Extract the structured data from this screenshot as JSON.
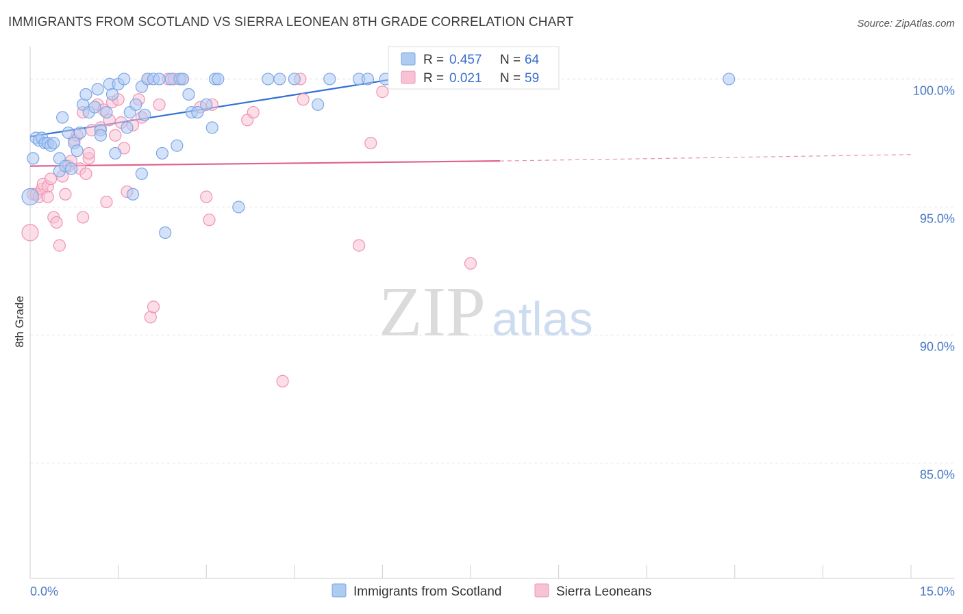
{
  "chart_data": {
    "type": "scatter",
    "title": "IMMIGRANTS FROM SCOTLAND VS SIERRA LEONEAN 8TH GRADE CORRELATION CHART",
    "source": "Source: ZipAtlas.com",
    "xlabel": "",
    "ylabel": "8th Grade",
    "xlim": [
      0.0,
      15.0
    ],
    "ylim": [
      80.5,
      101.0
    ],
    "x_tick_labels": [
      "0.0%",
      "15.0%"
    ],
    "y_ticks": [
      {
        "value": 100.0,
        "label": "100.0%"
      },
      {
        "value": 95.0,
        "label": "95.0%"
      },
      {
        "value": 90.0,
        "label": "90.0%"
      },
      {
        "value": 85.0,
        "label": "85.0%"
      }
    ],
    "watermark": {
      "part1": "ZIP",
      "part2": "atlas"
    },
    "legend_stats": [
      {
        "r_label": "R =",
        "r_value": "0.457",
        "n_label": "N =",
        "n_value": "64"
      },
      {
        "r_label": "R =",
        "r_value": "0.021",
        "n_label": "N =",
        "n_value": "59"
      }
    ],
    "series": [
      {
        "name": "Immigrants from Scotland",
        "color": "#7aa6e6",
        "fill": "#aecbf2",
        "line_color": "#2f6fd4",
        "trend": {
          "x": [
            0.0,
            6.2
          ],
          "y": [
            97.75,
            100.0
          ]
        },
        "points": [
          [
            0.05,
            96.9
          ],
          [
            0.1,
            97.7
          ],
          [
            0.15,
            97.6
          ],
          [
            0.2,
            97.7
          ],
          [
            0.25,
            97.5
          ],
          [
            0.3,
            97.5
          ],
          [
            0.35,
            97.4
          ],
          [
            0.4,
            97.5
          ],
          [
            0.5,
            96.9
          ],
          [
            0.5,
            96.4
          ],
          [
            0.55,
            98.5
          ],
          [
            0.6,
            96.6
          ],
          [
            0.65,
            97.9
          ],
          [
            0.7,
            96.5
          ],
          [
            0.75,
            97.5
          ],
          [
            0.8,
            97.2
          ],
          [
            0.85,
            97.9
          ],
          [
            0.9,
            99.0
          ],
          [
            0.95,
            99.4
          ],
          [
            1.0,
            98.7
          ],
          [
            1.1,
            98.9
          ],
          [
            1.15,
            99.6
          ],
          [
            1.2,
            98.0
          ],
          [
            1.2,
            97.8
          ],
          [
            1.3,
            98.7
          ],
          [
            1.35,
            99.8
          ],
          [
            1.4,
            99.4
          ],
          [
            1.45,
            97.1
          ],
          [
            1.5,
            99.8
          ],
          [
            1.6,
            100.0
          ],
          [
            1.65,
            98.1
          ],
          [
            1.7,
            98.7
          ],
          [
            1.75,
            95.5
          ],
          [
            1.8,
            99.0
          ],
          [
            1.9,
            96.3
          ],
          [
            1.9,
            99.7
          ],
          [
            1.95,
            98.6
          ],
          [
            2.0,
            100.0
          ],
          [
            2.1,
            100.0
          ],
          [
            2.2,
            100.0
          ],
          [
            2.25,
            97.1
          ],
          [
            2.3,
            94.0
          ],
          [
            2.4,
            100.0
          ],
          [
            2.5,
            97.4
          ],
          [
            2.55,
            100.0
          ],
          [
            2.6,
            100.0
          ],
          [
            2.7,
            99.4
          ],
          [
            2.75,
            98.7
          ],
          [
            2.85,
            98.7
          ],
          [
            3.0,
            99.0
          ],
          [
            3.1,
            98.1
          ],
          [
            3.15,
            100.0
          ],
          [
            3.2,
            100.0
          ],
          [
            3.55,
            95.0
          ],
          [
            4.05,
            100.0
          ],
          [
            4.25,
            100.0
          ],
          [
            4.5,
            100.0
          ],
          [
            4.9,
            99.0
          ],
          [
            5.1,
            100.0
          ],
          [
            5.6,
            100.0
          ],
          [
            5.75,
            100.0
          ],
          [
            6.05,
            100.0
          ],
          [
            11.9,
            100.0
          ],
          [
            0.0,
            95.4
          ]
        ]
      },
      {
        "name": "Sierra Leoneans",
        "color": "#ef93b3",
        "fill": "#f7c3d4",
        "line_color": "#e0608e",
        "trend": {
          "x": [
            0.0,
            8.0
          ],
          "y": [
            96.6,
            96.8
          ]
        },
        "trend_dashed": {
          "x": [
            8.0,
            15.0
          ],
          "y": [
            96.8,
            97.05
          ]
        },
        "points": [
          [
            0.0,
            94.0
          ],
          [
            0.05,
            95.5
          ],
          [
            0.1,
            95.5
          ],
          [
            0.15,
            95.4
          ],
          [
            0.2,
            95.7
          ],
          [
            0.22,
            95.9
          ],
          [
            0.3,
            95.8
          ],
          [
            0.3,
            95.4
          ],
          [
            0.35,
            96.1
          ],
          [
            0.4,
            94.6
          ],
          [
            0.45,
            94.4
          ],
          [
            0.5,
            93.5
          ],
          [
            0.55,
            96.2
          ],
          [
            0.6,
            95.5
          ],
          [
            0.65,
            96.6
          ],
          [
            0.7,
            96.8
          ],
          [
            0.75,
            97.6
          ],
          [
            0.8,
            97.8
          ],
          [
            0.85,
            96.5
          ],
          [
            0.9,
            98.7
          ],
          [
            0.9,
            94.6
          ],
          [
            0.95,
            96.3
          ],
          [
            1.0,
            96.9
          ],
          [
            1.0,
            97.1
          ],
          [
            1.05,
            98.0
          ],
          [
            1.15,
            99.0
          ],
          [
            1.2,
            98.1
          ],
          [
            1.25,
            98.8
          ],
          [
            1.3,
            95.2
          ],
          [
            1.35,
            98.4
          ],
          [
            1.4,
            99.1
          ],
          [
            1.45,
            97.8
          ],
          [
            1.5,
            99.2
          ],
          [
            1.55,
            98.3
          ],
          [
            1.6,
            97.3
          ],
          [
            1.65,
            95.6
          ],
          [
            1.75,
            98.2
          ],
          [
            1.85,
            99.2
          ],
          [
            1.9,
            98.5
          ],
          [
            2.0,
            100.0
          ],
          [
            2.05,
            90.7
          ],
          [
            2.1,
            91.1
          ],
          [
            2.2,
            99.0
          ],
          [
            2.35,
            100.0
          ],
          [
            2.45,
            100.0
          ],
          [
            2.6,
            100.0
          ],
          [
            2.9,
            98.9
          ],
          [
            3.0,
            95.4
          ],
          [
            3.05,
            94.5
          ],
          [
            3.1,
            99.0
          ],
          [
            3.7,
            98.4
          ],
          [
            3.8,
            98.7
          ],
          [
            4.3,
            88.2
          ],
          [
            4.6,
            100.0
          ],
          [
            4.65,
            99.2
          ],
          [
            5.6,
            93.5
          ],
          [
            5.8,
            97.5
          ],
          [
            6.0,
            99.5
          ],
          [
            7.5,
            92.8
          ]
        ]
      }
    ]
  }
}
